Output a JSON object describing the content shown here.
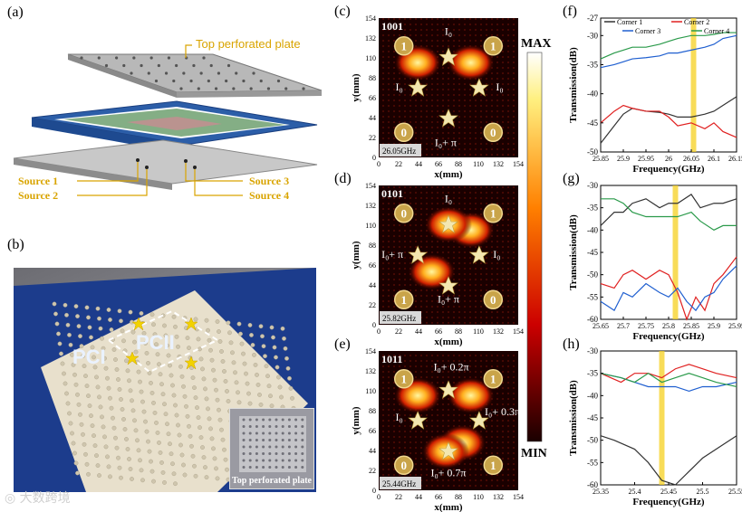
{
  "panels": {
    "a": "(a)",
    "b": "(b)",
    "c": "(c)",
    "d": "(d)",
    "e": "(e)",
    "f": "(f)",
    "g": "(g)",
    "h": "(h)"
  },
  "panel_a": {
    "top_plate_label": "Top perforated plate",
    "sources": [
      "Source 1",
      "Source 2",
      "Source 3",
      "Source 4"
    ]
  },
  "panel_b": {
    "pc1": "PCI",
    "pc2": "PCII",
    "inset_caption": "Top perforated plate"
  },
  "field_maps": {
    "xlabel": "x(mm)",
    "ylabel": "y(mm)",
    "ticks": [
      "0",
      "22",
      "44",
      "66",
      "88",
      "110",
      "132",
      "154"
    ],
    "colorbar": {
      "max": "MAX",
      "min": "MIN"
    },
    "maps": [
      {
        "code": "1001",
        "freq": "26.05GHz",
        "corners": [
          "1",
          "1",
          "0",
          "0"
        ],
        "source_labels": [
          "I₀",
          "I₀",
          "I₀",
          "I₀+ π"
        ]
      },
      {
        "code": "0101",
        "freq": "25.82GHz",
        "corners": [
          "0",
          "1",
          "1",
          "0"
        ],
        "source_labels": [
          "I₀",
          "I₀+ π",
          "I₀",
          "I₀+ π"
        ]
      },
      {
        "code": "1011",
        "freq": "25.44GHz",
        "corners": [
          "1",
          "1",
          "0",
          "1"
        ],
        "source_labels": [
          "I₀+ 0.2π",
          "I₀",
          "I₀+ 0.3π",
          "I₀+ 0.7π"
        ]
      }
    ]
  },
  "colors": {
    "corner1": "#333333",
    "corner2": "#e02020",
    "corner3": "#1f5fd0",
    "corner4": "#2a9a4a",
    "highlight": "#f5d020",
    "gold": "#d9a400"
  },
  "chart_data": [
    {
      "type": "line",
      "id": "f",
      "title": "",
      "xlabel": "Frequency(GHz)",
      "ylabel": "Transmission(dB)",
      "xlim": [
        25.85,
        26.15
      ],
      "ylim": [
        -50,
        -27
      ],
      "xticks": [
        "25.85",
        "25.9",
        "25.95",
        "26",
        "26.05",
        "26.1",
        "26.15"
      ],
      "yticks": [
        "-50",
        "-45",
        "-40",
        "-35",
        "-30",
        "-27"
      ],
      "xtick_values": [
        25.85,
        25.9,
        25.95,
        26.0,
        26.05,
        26.1,
        26.15
      ],
      "ytick_values": [
        -50,
        -45,
        -40,
        -35,
        -30,
        -27
      ],
      "highlight": 26.055,
      "legend": [
        "Corner 1",
        "Corner 2",
        "Corner 3",
        "Corner 4"
      ],
      "series": [
        {
          "name": "Corner 1",
          "x": [
            25.85,
            25.88,
            25.9,
            25.92,
            25.95,
            25.98,
            26.0,
            26.02,
            26.05,
            26.08,
            26.1,
            26.12,
            26.15
          ],
          "y": [
            -48.5,
            -45.5,
            -43.5,
            -42.5,
            -43,
            -43.2,
            -43.5,
            -44,
            -44,
            -43.5,
            -43,
            -42,
            -40.5
          ]
        },
        {
          "name": "Corner 2",
          "x": [
            25.85,
            25.88,
            25.9,
            25.92,
            25.95,
            25.98,
            26.0,
            26.02,
            26.05,
            26.08,
            26.1,
            26.12,
            26.15
          ],
          "y": [
            -45,
            -43,
            -42,
            -42.5,
            -43,
            -43,
            -44,
            -45.5,
            -45,
            -46,
            -45,
            -46.5,
            -47.5
          ]
        },
        {
          "name": "Corner 3",
          "x": [
            25.85,
            25.88,
            25.9,
            25.92,
            25.95,
            25.98,
            26.0,
            26.02,
            26.05,
            26.08,
            26.1,
            26.12,
            26.15
          ],
          "y": [
            -35.5,
            -35,
            -34.5,
            -34,
            -33.8,
            -33.5,
            -33,
            -33,
            -32.5,
            -32,
            -31.5,
            -30.5,
            -30
          ]
        },
        {
          "name": "Corner 4",
          "x": [
            25.85,
            25.88,
            25.9,
            25.92,
            25.95,
            25.98,
            26.0,
            26.02,
            26.05,
            26.08,
            26.1,
            26.12,
            26.15
          ],
          "y": [
            -34,
            -33,
            -32.5,
            -32,
            -32,
            -31.5,
            -31,
            -30.5,
            -30,
            -30,
            -29.8,
            -29.5,
            -29.5
          ]
        }
      ]
    },
    {
      "type": "line",
      "id": "g",
      "title": "",
      "xlabel": "Frequency(GHz)",
      "ylabel": "Transmission(dB)",
      "xlim": [
        25.65,
        25.95
      ],
      "ylim": [
        -60,
        -30
      ],
      "xticks": [
        "25.65",
        "25.7",
        "25.75",
        "25.8",
        "25.85",
        "25.9",
        "25.95"
      ],
      "yticks": [
        "-60",
        "-55",
        "-50",
        "-45",
        "-40",
        "-35",
        "-30"
      ],
      "xtick_values": [
        25.65,
        25.7,
        25.75,
        25.8,
        25.85,
        25.9,
        25.95
      ],
      "ytick_values": [
        -60,
        -55,
        -50,
        -45,
        -40,
        -35,
        -30
      ],
      "highlight": 25.815,
      "legend": [],
      "series": [
        {
          "name": "Corner 1",
          "x": [
            25.65,
            25.68,
            25.7,
            25.72,
            25.75,
            25.78,
            25.8,
            25.82,
            25.85,
            25.87,
            25.9,
            25.92,
            25.95
          ],
          "y": [
            -39,
            -36,
            -36,
            -34,
            -33,
            -35,
            -34,
            -34,
            -32,
            -35,
            -34,
            -34,
            -33
          ]
        },
        {
          "name": "Corner 2",
          "x": [
            25.65,
            25.68,
            25.7,
            25.72,
            25.75,
            25.78,
            25.8,
            25.82,
            25.84,
            25.86,
            25.88,
            25.9,
            25.92,
            25.95
          ],
          "y": [
            -52,
            -53,
            -50,
            -49,
            -51,
            -49,
            -50,
            -54,
            -60,
            -55,
            -58,
            -52,
            -50,
            -46
          ]
        },
        {
          "name": "Corner 3",
          "x": [
            25.65,
            25.68,
            25.7,
            25.72,
            25.75,
            25.78,
            25.8,
            25.82,
            25.84,
            25.86,
            25.88,
            25.9,
            25.92,
            25.95
          ],
          "y": [
            -56,
            -58,
            -54,
            -55,
            -52,
            -54,
            -55,
            -53,
            -56,
            -58,
            -55,
            -54,
            -51,
            -48
          ]
        },
        {
          "name": "Corner 4",
          "x": [
            25.65,
            25.68,
            25.7,
            25.72,
            25.75,
            25.78,
            25.8,
            25.82,
            25.85,
            25.87,
            25.9,
            25.92,
            25.95
          ],
          "y": [
            -33,
            -33,
            -34,
            -36,
            -37,
            -37,
            -37,
            -37,
            -36,
            -38,
            -40,
            -39,
            -39
          ]
        }
      ]
    },
    {
      "type": "line",
      "id": "h",
      "title": "",
      "xlabel": "Frequency(GHz)",
      "ylabel": "Transmission(dB)",
      "xlim": [
        25.35,
        25.55
      ],
      "ylim": [
        -60,
        -30
      ],
      "xticks": [
        "25.35",
        "25.4",
        "25.45",
        "25.5",
        "25.55"
      ],
      "yticks": [
        "-60",
        "-55",
        "-50",
        "-45",
        "-40",
        "-35",
        "-30"
      ],
      "xtick_values": [
        25.35,
        25.4,
        25.45,
        25.5,
        25.55
      ],
      "ytick_values": [
        -60,
        -55,
        -50,
        -45,
        -40,
        -35,
        -30
      ],
      "highlight": 25.44,
      "legend": [],
      "series": [
        {
          "name": "Corner 1",
          "x": [
            25.35,
            25.37,
            25.4,
            25.42,
            25.44,
            25.46,
            25.48,
            25.5,
            25.52,
            25.55
          ],
          "y": [
            -49,
            -50,
            -52,
            -55,
            -59,
            -60,
            -57,
            -54,
            -52,
            -49
          ]
        },
        {
          "name": "Corner 2",
          "x": [
            25.35,
            25.38,
            25.4,
            25.42,
            25.44,
            25.46,
            25.48,
            25.5,
            25.52,
            25.55
          ],
          "y": [
            -35,
            -37,
            -35,
            -35,
            -36,
            -34,
            -33,
            -34,
            -35,
            -36
          ]
        },
        {
          "name": "Corner 3",
          "x": [
            25.35,
            25.38,
            25.4,
            25.42,
            25.44,
            25.46,
            25.48,
            25.5,
            25.52,
            25.55
          ],
          "y": [
            -35,
            -36,
            -37,
            -38,
            -38,
            -38,
            -39,
            -38,
            -38,
            -37
          ]
        },
        {
          "name": "Corner 4",
          "x": [
            25.35,
            25.38,
            25.4,
            25.42,
            25.44,
            25.46,
            25.48,
            25.5,
            25.52,
            25.55
          ],
          "y": [
            -35,
            -36,
            -37,
            -35,
            -37,
            -36,
            -35,
            -36,
            -37,
            -38
          ]
        }
      ]
    }
  ],
  "watermark": "大数跨境"
}
